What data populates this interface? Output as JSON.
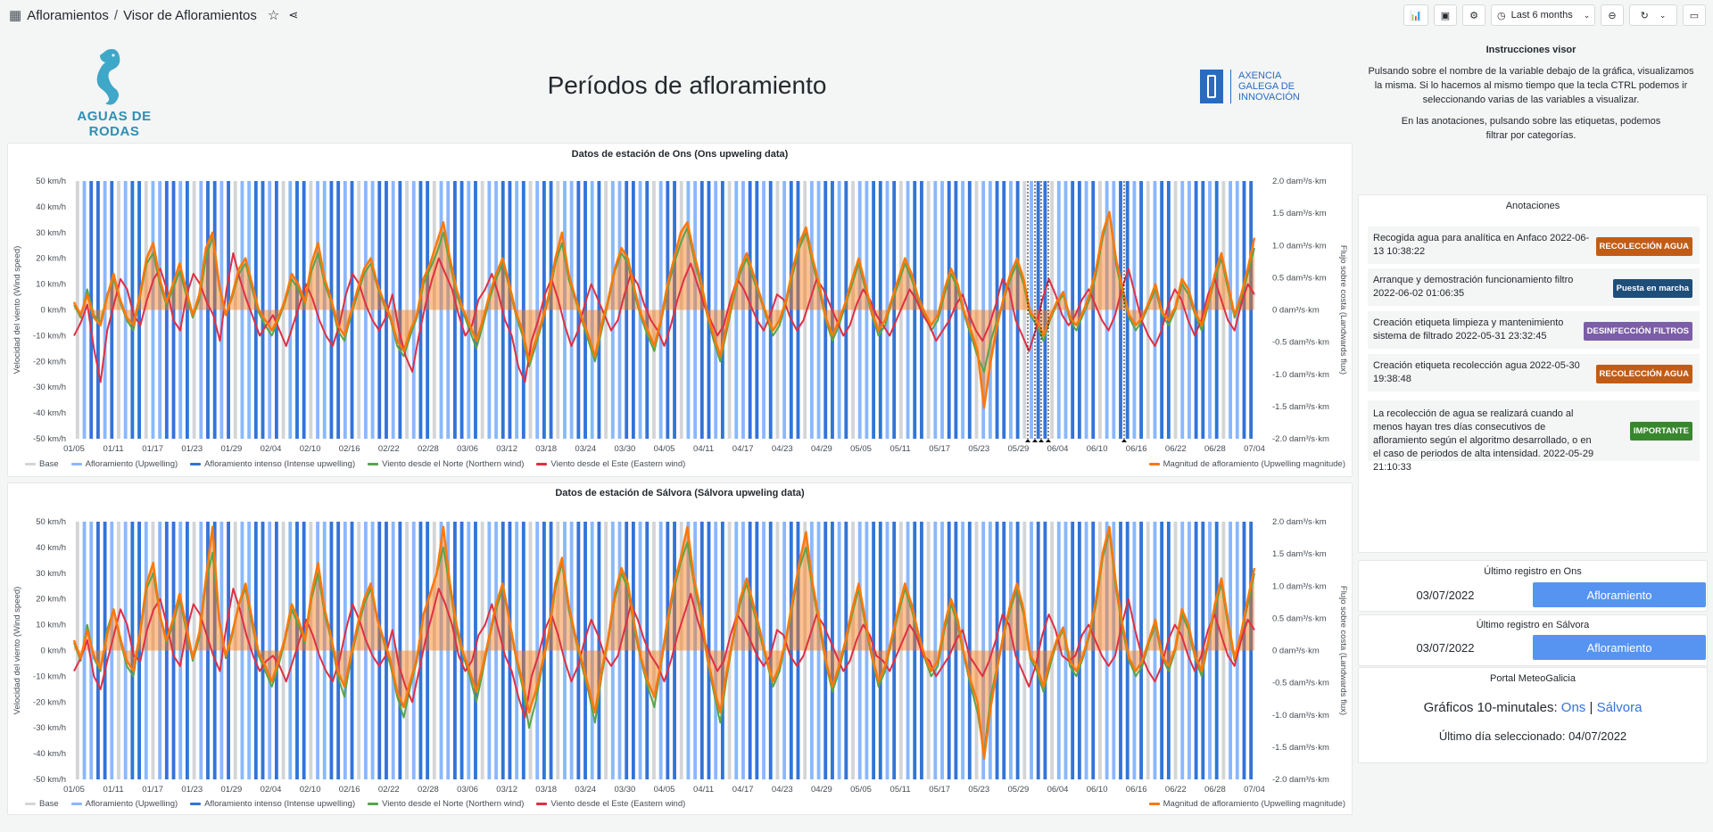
{
  "topbar": {
    "grid_icon": "apps-icon",
    "folder": "Afloramientos",
    "sep": "/",
    "dashboard": "Visor de Afloramientos",
    "timerange": "Last 6 months"
  },
  "header": {
    "brand": "AGUAS DE RODAS",
    "title": "Períodos de afloramiento",
    "agency_lines": [
      "AXENCIA",
      "GALEGA DE",
      "INNOVACIÓN"
    ]
  },
  "instructions": {
    "title": "Instrucciones visor",
    "p1": "Pulsando sobre el nombre de la variable debajo de la gráfica, visualizamos la misma. Si lo hacemos al mismo tiempo que la tecla CTRL podemos ir seleccionando varias de las variables a visualizar.",
    "p2": "En las anotaciones, pulsando sobre las etiquetas, podemos filtrar por categorías."
  },
  "annotations": {
    "title": "Anotaciones",
    "items": [
      {
        "text": "Recogida agua para analítica en Anfaco",
        "time": "2022-06-13 10:38:22",
        "tag": "RECOLECCIÓN AGUA",
        "color": "#c15c17"
      },
      {
        "text": "Arranque y demostración funcionamiento filtro",
        "time": "2022-06-02 01:06:35",
        "tag": "Puesta en marcha",
        "color": "#1f4e79"
      },
      {
        "text": "Creación etiqueta limpieza y mantenimiento sistema de filtrado",
        "time": "2022-05-31 23:32:45",
        "tag": "DESINFECCIÓN FILTROS",
        "color": "#7b5ea7"
      },
      {
        "text": "Creación etiqueta recolección agua",
        "time": "2022-05-30 19:38:48",
        "tag": "RECOLECCIÓN AGUA",
        "color": "#c15c17"
      },
      {
        "text": "La recolección de agua se realizará cuando al menos hayan tres días consecutivos de afloramiento según el algoritmo desarrollado, o en el caso de periodos de alta intensidad.",
        "time": "2022-05-29 21:10:33",
        "tag": "IMPORTANTE",
        "color": "#37872d"
      }
    ]
  },
  "last_ons": {
    "title": "Último registro en Ons",
    "date": "03/07/2022",
    "status": "Afloramiento"
  },
  "last_salvora": {
    "title": "Último registro en Sálvora",
    "date": "03/07/2022",
    "status": "Afloramiento"
  },
  "portal": {
    "title": "Portal MeteoGalicia",
    "line_prefix": "Gráficos 10-minutales:",
    "link_ons": "Ons",
    "sep": "|",
    "link_salvora": "Sálvora",
    "last_day": "Último día seleccionado: 04/07/2022"
  },
  "legend": [
    "Base",
    "Afloramiento (Upwelling)",
    "Afloramiento intenso (Intense upwelling)",
    "Viento desde el Norte (Northern wind)",
    "Viento desde el Este (Eastern wind)",
    "Magnitud de afloramiento (Upwelling magnitude)"
  ],
  "colors": {
    "base": "#d4d5d7",
    "upwelling": "#8ab8ff",
    "intense": "#3274d9",
    "north": "#56a64b",
    "east": "#e02f44",
    "magnitude": "#ff780a",
    "accent": "#5794f2"
  },
  "chart_data": [
    {
      "type": "bar",
      "title": "Datos de estación de Ons (Ons upweling data)",
      "ylabel": "Velocidad del viento (Wind speed)",
      "y2label": "Flujo sobre costa (Landwards flux)",
      "yticks": [
        "50 km/h",
        "40 km/h",
        "30 km/h",
        "20 km/h",
        "10 km/h",
        "0 km/h",
        "-10 km/h",
        "-20 km/h",
        "-30 km/h",
        "-40 km/h",
        "-50 km/h"
      ],
      "y2ticks": [
        "2.0 dam³/s·km",
        "1.5 dam³/s·km",
        "1.0 dam³/s·km",
        "0.5 dam³/s·km",
        "0 dam³/s·km",
        "-0.5 dam³/s·km",
        "-1.0 dam³/s·km",
        "-1.5 dam³/s·km",
        "-2.0 dam³/s·km"
      ],
      "xticks": [
        "01/05",
        "01/11",
        "01/17",
        "01/23",
        "01/29",
        "02/04",
        "02/10",
        "02/16",
        "02/22",
        "02/28",
        "03/06",
        "03/12",
        "03/18",
        "03/24",
        "03/30",
        "04/05",
        "04/11",
        "04/17",
        "04/23",
        "04/29",
        "05/05",
        "05/11",
        "05/17",
        "05/23",
        "05/29",
        "06/04",
        "06/10",
        "06/16",
        "06/22",
        "06/28",
        "07/04"
      ],
      "ylim": [
        -50,
        50
      ],
      "y2lim": [
        -2,
        2
      ],
      "series_names": [
        "Viento desde el Norte (Northern wind)",
        "Viento desde el Este (Eastern wind)",
        "Magnitud de afloramiento (Upwelling magnitude)"
      ],
      "bar_states": "0122120122011221201221201122120122011221201122120122011221201122120122011221201122120122011221201122120122011221201122120122011221201122120122011221201122120122011221201122",
      "north": [
        2,
        -3,
        8,
        -2,
        -5,
        6,
        12,
        3,
        -4,
        -8,
        5,
        18,
        22,
        10,
        2,
        8,
        15,
        6,
        -3,
        4,
        20,
        28,
        9,
        -2,
        5,
        14,
        18,
        8,
        -1,
        -6,
        -10,
        -4,
        3,
        12,
        8,
        2,
        15,
        22,
        10,
        3,
        -8,
        -12,
        -2,
        6,
        14,
        18,
        9,
        2,
        -4,
        -14,
        -18,
        -10,
        -3,
        10,
        16,
        22,
        30,
        18,
        6,
        -1,
        -8,
        -15,
        -6,
        4,
        12,
        18,
        9,
        -2,
        -10,
        -22,
        -14,
        -5,
        5,
        18,
        26,
        12,
        4,
        -4,
        -12,
        -20,
        -8,
        3,
        15,
        22,
        18,
        6,
        -3,
        -10,
        -16,
        -5,
        8,
        18,
        26,
        32,
        20,
        10,
        -2,
        -12,
        -20,
        -8,
        4,
        14,
        20,
        12,
        5,
        -3,
        -10,
        -6,
        3,
        14,
        24,
        30,
        18,
        8,
        -4,
        -12,
        -6,
        2,
        10,
        18,
        8,
        -2,
        -10,
        -6,
        3,
        10,
        18,
        12,
        4,
        -2,
        -8,
        -4,
        6,
        14,
        8,
        -2,
        -10,
        -18,
        -24,
        -12,
        -4,
        4,
        12,
        18,
        10,
        -2,
        -6,
        -12,
        -4,
        2,
        6,
        -4,
        -8,
        -2,
        4,
        14,
        28,
        38,
        18,
        6,
        -3,
        -8,
        -4,
        2,
        8,
        -2,
        -6,
        0,
        10,
        6,
        -2,
        -8,
        2,
        12,
        20,
        8,
        -3,
        4,
        14,
        24
      ],
      "east": [
        -10,
        -5,
        2,
        -15,
        -28,
        -8,
        2,
        12,
        8,
        -2,
        -6,
        4,
        12,
        16,
        8,
        -4,
        -8,
        6,
        14,
        10,
        3,
        -2,
        -12,
        8,
        22,
        12,
        4,
        -3,
        -10,
        -6,
        -2,
        -8,
        -14,
        -6,
        2,
        10,
        4,
        -4,
        -10,
        -14,
        -6,
        6,
        14,
        10,
        2,
        -4,
        -8,
        -3,
        6,
        -8,
        -18,
        -24,
        -10,
        2,
        12,
        20,
        14,
        8,
        -2,
        -10,
        -6,
        4,
        8,
        14,
        6,
        -4,
        -10,
        -22,
        -28,
        -12,
        -4,
        6,
        12,
        4,
        -6,
        -14,
        -8,
        2,
        10,
        4,
        -2,
        -8,
        -4,
        6,
        14,
        10,
        2,
        -4,
        -8,
        -14,
        -6,
        4,
        12,
        18,
        10,
        2,
        -4,
        -10,
        -6,
        4,
        12,
        8,
        2,
        -4,
        -8,
        -2,
        6,
        4,
        -3,
        -8,
        -4,
        4,
        12,
        8,
        2,
        -4,
        -10,
        -6,
        2,
        8,
        4,
        -2,
        -6,
        -10,
        -4,
        2,
        8,
        4,
        -2,
        -6,
        -12,
        -8,
        -4,
        2,
        6,
        -2,
        -8,
        -12,
        -6,
        2,
        12,
        8,
        -4,
        -10,
        -16,
        -8,
        4,
        12,
        6,
        -2,
        -6,
        -2,
        4,
        8,
        2,
        -4,
        -8,
        -2,
        8,
        16,
        6,
        -4,
        -10,
        -14,
        -8,
        2,
        8,
        4,
        -4,
        -10,
        -4,
        6,
        12,
        4,
        -4,
        -8,
        2,
        10,
        6
      ],
      "magnitude": [
        3,
        -2,
        6,
        -3,
        -6,
        5,
        14,
        4,
        -3,
        -6,
        6,
        20,
        26,
        12,
        3,
        10,
        18,
        8,
        -2,
        6,
        24,
        30,
        10,
        -2,
        6,
        16,
        20,
        10,
        0,
        -4,
        -8,
        -3,
        4,
        14,
        10,
        3,
        18,
        26,
        12,
        4,
        -6,
        -10,
        -1,
        8,
        16,
        20,
        10,
        3,
        -3,
        -12,
        -16,
        -8,
        -2,
        12,
        18,
        26,
        34,
        20,
        8,
        0,
        -6,
        -12,
        -4,
        6,
        14,
        20,
        10,
        -1,
        -8,
        -20,
        -12,
        -4,
        6,
        20,
        30,
        14,
        5,
        -3,
        -10,
        -18,
        -6,
        4,
        16,
        24,
        20,
        8,
        -2,
        -8,
        -14,
        -4,
        10,
        20,
        30,
        34,
        22,
        12,
        -1,
        -10,
        -18,
        -6,
        6,
        16,
        22,
        14,
        6,
        -2,
        -8,
        -4,
        4,
        16,
        26,
        32,
        20,
        10,
        -3,
        -10,
        -4,
        3,
        12,
        20,
        10,
        -1,
        -8,
        -4,
        4,
        12,
        20,
        14,
        5,
        -1,
        -6,
        -2,
        8,
        16,
        10,
        -1,
        -8,
        -16,
        -38,
        -20,
        -6,
        5,
        14,
        20,
        12,
        -1,
        -4,
        -10,
        -3,
        3,
        7,
        -3,
        -6,
        -1,
        6,
        16,
        30,
        38,
        20,
        8,
        -2,
        -6,
        -3,
        3,
        10,
        -1,
        -4,
        1,
        12,
        8,
        -1,
        -6,
        3,
        14,
        22,
        10,
        -2,
        6,
        16,
        28
      ]
    },
    {
      "type": "bar",
      "title": "Datos de estación de Sálvora (Sálvora upweling data)",
      "ylabel": "Velocidad del viento (Wind speed)",
      "y2label": "Flujo sobre costa (Landwards flux)",
      "yticks": [
        "50 km/h",
        "40 km/h",
        "30 km/h",
        "20 km/h",
        "10 km/h",
        "0 km/h",
        "-10 km/h",
        "-20 km/h",
        "-30 km/h",
        "-40 km/h",
        "-50 km/h"
      ],
      "y2ticks": [
        "2.0 dam³/s·km",
        "1.5 dam³/s·km",
        "1.0 dam³/s·km",
        "0.5 dam³/s·km",
        "0 dam³/s·km",
        "-0.5 dam³/s·km",
        "-1.0 dam³/s·km",
        "-1.5 dam³/s·km",
        "-2.0 dam³/s·km"
      ],
      "xticks": [
        "01/05",
        "01/11",
        "01/17",
        "01/23",
        "01/29",
        "02/04",
        "02/10",
        "02/16",
        "02/22",
        "02/28",
        "03/06",
        "03/12",
        "03/18",
        "03/24",
        "03/30",
        "04/05",
        "04/11",
        "04/17",
        "04/23",
        "04/29",
        "05/05",
        "05/11",
        "05/17",
        "05/23",
        "05/29",
        "06/04",
        "06/10",
        "06/16",
        "06/22",
        "06/28",
        "07/04"
      ],
      "ylim": [
        -50,
        50
      ],
      "y2lim": [
        -2,
        2
      ],
      "series_names": [
        "Viento desde el Norte (Northern wind)",
        "Viento desde el Este (Eastern wind)",
        "Magnitud de afloramiento (Upwelling magnitude)"
      ],
      "bar_states": "0112210122101221201221201122120122011221201122120122011221201122120122011221201122120122011221201122120122011221201122120122011221201122120122011221201122120122011221201122",
      "north": [
        3,
        -4,
        10,
        -3,
        -8,
        8,
        16,
        4,
        -6,
        -10,
        6,
        24,
        30,
        14,
        3,
        10,
        20,
        8,
        -4,
        5,
        26,
        38,
        12,
        -3,
        6,
        18,
        24,
        10,
        -2,
        -8,
        -14,
        -6,
        4,
        16,
        10,
        3,
        20,
        30,
        14,
        4,
        -10,
        -18,
        -3,
        8,
        18,
        24,
        12,
        3,
        -6,
        -18,
        -26,
        -14,
        -4,
        14,
        22,
        30,
        40,
        24,
        8,
        -2,
        -10,
        -20,
        -8,
        5,
        16,
        24,
        12,
        -3,
        -14,
        -30,
        -20,
        -6,
        6,
        24,
        34,
        16,
        5,
        -6,
        -16,
        -28,
        -10,
        4,
        20,
        30,
        24,
        8,
        -4,
        -14,
        -22,
        -6,
        10,
        24,
        34,
        42,
        26,
        14,
        -3,
        -16,
        -28,
        -10,
        5,
        18,
        26,
        16,
        6,
        -4,
        -14,
        -8,
        4,
        18,
        32,
        40,
        24,
        10,
        -5,
        -16,
        -8,
        3,
        14,
        24,
        10,
        -3,
        -14,
        -8,
        4,
        14,
        24,
        16,
        6,
        -3,
        -10,
        -6,
        8,
        18,
        10,
        -3,
        -14,
        -24,
        -40,
        -18,
        -6,
        6,
        16,
        24,
        14,
        -3,
        -8,
        -16,
        -6,
        3,
        8,
        -6,
        -10,
        -3,
        6,
        18,
        36,
        46,
        24,
        8,
        -4,
        -10,
        -6,
        3,
        10,
        -3,
        -8,
        0,
        14,
        8,
        -3,
        -10,
        3,
        16,
        26,
        10,
        -4,
        6,
        18,
        30
      ],
      "east": [
        -8,
        -3,
        4,
        -10,
        -15,
        -4,
        6,
        16,
        10,
        -2,
        -4,
        8,
        16,
        20,
        10,
        -2,
        -6,
        8,
        18,
        14,
        6,
        -2,
        -8,
        10,
        24,
        16,
        6,
        -2,
        -8,
        -4,
        -2,
        -6,
        -12,
        -4,
        4,
        12,
        6,
        -2,
        -8,
        -12,
        -4,
        8,
        18,
        12,
        4,
        -2,
        -6,
        -2,
        8,
        -6,
        -14,
        -20,
        -8,
        4,
        14,
        24,
        18,
        10,
        -2,
        -8,
        -4,
        6,
        10,
        18,
        8,
        -2,
        -8,
        -18,
        -26,
        -10,
        -2,
        8,
        14,
        6,
        -4,
        -12,
        -6,
        4,
        12,
        6,
        -2,
        -6,
        -2,
        8,
        18,
        12,
        4,
        -2,
        -6,
        -12,
        -4,
        6,
        14,
        22,
        12,
        4,
        -2,
        -8,
        -4,
        6,
        14,
        10,
        4,
        -2,
        -6,
        -2,
        8,
        6,
        -2,
        -6,
        -2,
        6,
        14,
        10,
        4,
        -2,
        -8,
        -4,
        4,
        10,
        6,
        -2,
        -4,
        -8,
        -2,
        4,
        10,
        6,
        -2,
        -4,
        -10,
        -6,
        -2,
        4,
        8,
        -2,
        -6,
        -10,
        -4,
        4,
        14,
        10,
        -2,
        -8,
        -14,
        -6,
        6,
        14,
        8,
        -2,
        -4,
        -2,
        6,
        10,
        4,
        -2,
        -6,
        -2,
        10,
        20,
        8,
        -2,
        -8,
        -12,
        -6,
        4,
        10,
        6,
        -2,
        -8,
        -2,
        8,
        14,
        6,
        -2,
        -6,
        4,
        12,
        8
      ],
      "magnitude": [
        4,
        -3,
        8,
        -2,
        -7,
        6,
        16,
        5,
        -4,
        -8,
        7,
        26,
        34,
        14,
        4,
        12,
        22,
        10,
        -3,
        7,
        28,
        48,
        12,
        -2,
        7,
        18,
        26,
        12,
        -1,
        -6,
        -12,
        -4,
        5,
        18,
        12,
        4,
        22,
        34,
        16,
        5,
        -8,
        -14,
        -2,
        10,
        20,
        26,
        12,
        4,
        -4,
        -16,
        -22,
        -12,
        -3,
        14,
        22,
        30,
        48,
        26,
        10,
        -1,
        -8,
        -16,
        -6,
        6,
        18,
        26,
        12,
        -2,
        -12,
        -24,
        -16,
        -5,
        7,
        26,
        36,
        18,
        6,
        -4,
        -14,
        -24,
        -8,
        5,
        22,
        32,
        26,
        10,
        -3,
        -12,
        -18,
        -5,
        12,
        26,
        36,
        48,
        28,
        16,
        -2,
        -14,
        -24,
        -8,
        6,
        20,
        28,
        18,
        8,
        -3,
        -12,
        -6,
        5,
        20,
        34,
        46,
        26,
        12,
        -4,
        -14,
        -6,
        4,
        16,
        26,
        12,
        -2,
        -12,
        -6,
        5,
        16,
        26,
        18,
        7,
        -2,
        -8,
        -4,
        10,
        20,
        12,
        -2,
        -12,
        -20,
        -42,
        -22,
        -7,
        7,
        18,
        26,
        16,
        -2,
        -6,
        -14,
        -4,
        4,
        9,
        -4,
        -8,
        -2,
        7,
        20,
        38,
        48,
        26,
        10,
        -3,
        -8,
        -4,
        4,
        12,
        -2,
        -6,
        1,
        16,
        10,
        -2,
        -8,
        4,
        18,
        28,
        12,
        -3,
        7,
        20,
        32
      ]
    }
  ]
}
